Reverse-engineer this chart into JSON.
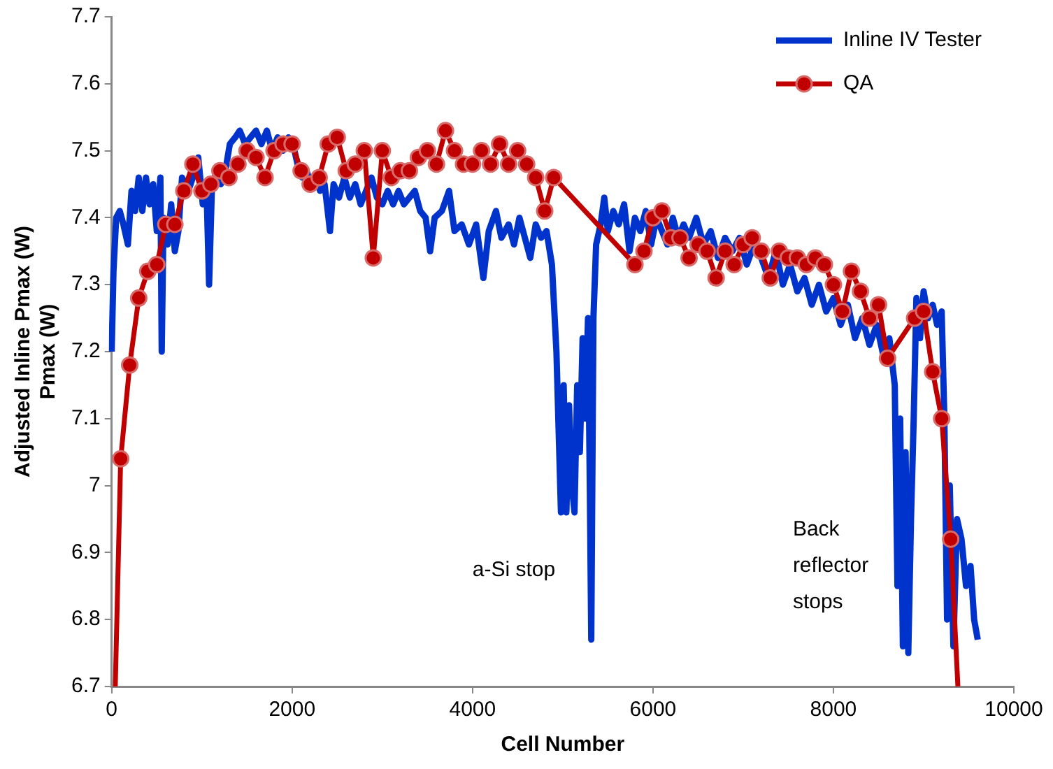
{
  "chart_data": {
    "type": "line",
    "xlabel": "Cell Number",
    "ylabel": "Adjusted Inline Pmax (W)\nPmax (W)",
    "xlim": [
      0,
      10000
    ],
    "xticks": [
      0,
      2000,
      4000,
      6000,
      8000,
      10000
    ],
    "ylim": [
      6.7,
      7.7
    ],
    "yticks": [
      6.7,
      6.8,
      6.9,
      7,
      7.1,
      7.2,
      7.3,
      7.4,
      7.5,
      7.6,
      7.7
    ],
    "grid": false,
    "legend": "top right",
    "series": [
      {
        "name": "Inline IV Tester",
        "color": "#0033cc",
        "marker": "none",
        "x": [
          0,
          20,
          50,
          90,
          130,
          180,
          220,
          260,
          300,
          340,
          380,
          420,
          460,
          500,
          540,
          555,
          575,
          620,
          660,
          700,
          740,
          780,
          850,
          900,
          960,
          1010,
          1050,
          1080,
          1110,
          1160,
          1210,
          1260,
          1310,
          1370,
          1420,
          1480,
          1540,
          1600,
          1660,
          1720,
          1780,
          1840,
          1900,
          1960,
          2010,
          2060,
          2110,
          2160,
          2210,
          2260,
          2310,
          2360,
          2420,
          2460,
          2520,
          2580,
          2640,
          2700,
          2760,
          2820,
          2880,
          2940,
          3000,
          3060,
          3120,
          3180,
          3240,
          3300,
          3360,
          3420,
          3480,
          3530,
          3580,
          3660,
          3740,
          3800,
          3880,
          3960,
          4040,
          4120,
          4180,
          4260,
          4320,
          4400,
          4460,
          4520,
          4580,
          4640,
          4700,
          4760,
          4820,
          4880,
          4930,
          4980,
          5010,
          5040,
          5070,
          5100,
          5130,
          5160,
          5190,
          5220,
          5250,
          5280,
          5300,
          5316,
          5340,
          5370,
          5420,
          5460,
          5500,
          5560,
          5620,
          5680,
          5740,
          5800,
          5860,
          5920,
          5980,
          6040,
          6100,
          6160,
          6220,
          6280,
          6340,
          6400,
          6480,
          6560,
          6640,
          6720,
          6800,
          6880,
          6960,
          7040,
          7120,
          7200,
          7280,
          7360,
          7440,
          7520,
          7600,
          7680,
          7760,
          7840,
          7920,
          8000,
          8080,
          8160,
          8240,
          8320,
          8400,
          8480,
          8560,
          8620,
          8680,
          8710,
          8740,
          8770,
          8800,
          8830,
          8860,
          8890,
          8920,
          8960,
          9000,
          9050,
          9100,
          9150,
          9200,
          9230,
          9260,
          9290,
          9330,
          9370,
          9420,
          9470,
          9520,
          9560,
          9600
        ],
        "values": [
          7.2,
          7.32,
          7.4,
          7.41,
          7.39,
          7.36,
          7.44,
          7.41,
          7.46,
          7.41,
          7.46,
          7.42,
          7.45,
          7.38,
          7.46,
          7.2,
          7.4,
          7.36,
          7.42,
          7.35,
          7.38,
          7.46,
          7.44,
          7.46,
          7.49,
          7.42,
          7.45,
          7.3,
          7.44,
          7.47,
          7.45,
          7.47,
          7.51,
          7.52,
          7.53,
          7.51,
          7.52,
          7.53,
          7.51,
          7.53,
          7.5,
          7.52,
          7.5,
          7.52,
          7.51,
          7.48,
          7.46,
          7.47,
          7.45,
          7.46,
          7.44,
          7.45,
          7.38,
          7.45,
          7.43,
          7.46,
          7.43,
          7.45,
          7.42,
          7.44,
          7.46,
          7.43,
          7.42,
          7.44,
          7.42,
          7.44,
          7.42,
          7.43,
          7.44,
          7.41,
          7.4,
          7.35,
          7.4,
          7.41,
          7.44,
          7.38,
          7.39,
          7.36,
          7.39,
          7.31,
          7.38,
          7.41,
          7.37,
          7.39,
          7.36,
          7.4,
          7.37,
          7.34,
          7.39,
          7.37,
          7.38,
          7.33,
          7.2,
          6.96,
          7.15,
          6.96,
          7.12,
          7,
          6.96,
          7.15,
          7.05,
          7.22,
          7.1,
          7.25,
          7,
          6.77,
          7.25,
          7.36,
          7.39,
          7.43,
          7.38,
          7.41,
          7.39,
          7.42,
          7.35,
          7.4,
          7.38,
          7.41,
          7.36,
          7.4,
          7.38,
          7.36,
          7.4,
          7.37,
          7.39,
          7.37,
          7.4,
          7.36,
          7.38,
          7.34,
          7.37,
          7.35,
          7.37,
          7.33,
          7.36,
          7.34,
          7.31,
          7.35,
          7.3,
          7.33,
          7.29,
          7.31,
          7.27,
          7.3,
          7.26,
          7.28,
          7.24,
          7.27,
          7.22,
          7.25,
          7.21,
          7.24,
          7.19,
          7.22,
          7.15,
          6.85,
          7.1,
          6.76,
          7.05,
          6.75,
          6.95,
          7.1,
          7.28,
          7.22,
          7.29,
          7.25,
          7.27,
          7.24,
          7.26,
          7.1,
          6.8,
          7,
          6.76,
          6.95,
          6.92,
          6.85,
          6.88,
          6.8,
          6.77
        ]
      },
      {
        "name": "QA",
        "color": "#c00000",
        "marker": "circle",
        "x": [
          40,
          100,
          200,
          300,
          400,
          500,
          600,
          700,
          800,
          900,
          1000,
          1100,
          1200,
          1300,
          1400,
          1500,
          1600,
          1700,
          1800,
          1900,
          2000,
          2100,
          2200,
          2300,
          2400,
          2500,
          2600,
          2700,
          2800,
          2900,
          3000,
          3100,
          3200,
          3300,
          3400,
          3500,
          3600,
          3700,
          3800,
          3900,
          4000,
          4100,
          4200,
          4300,
          4400,
          4500,
          4600,
          4700,
          4800,
          4900,
          5800,
          5900,
          6000,
          6100,
          6200,
          6300,
          6400,
          6500,
          6600,
          6700,
          6800,
          6900,
          7000,
          7100,
          7200,
          7300,
          7400,
          7500,
          7600,
          7700,
          7800,
          7900,
          8000,
          8100,
          8200,
          8300,
          8400,
          8500,
          8600,
          8900,
          9000,
          9100,
          9200,
          9300,
          9380
        ],
        "values": [
          6.7,
          7.04,
          7.18,
          7.28,
          7.32,
          7.33,
          7.39,
          7.39,
          7.44,
          7.48,
          7.44,
          7.45,
          7.47,
          7.46,
          7.48,
          7.5,
          7.49,
          7.46,
          7.5,
          7.51,
          7.51,
          7.47,
          7.45,
          7.46,
          7.51,
          7.52,
          7.47,
          7.48,
          7.5,
          7.34,
          7.5,
          7.46,
          7.47,
          7.47,
          7.49,
          7.5,
          7.48,
          7.53,
          7.5,
          7.48,
          7.48,
          7.5,
          7.48,
          7.51,
          7.48,
          7.5,
          7.48,
          7.46,
          7.41,
          7.46,
          7.33,
          7.35,
          7.4,
          7.41,
          7.37,
          7.37,
          7.34,
          7.36,
          7.35,
          7.31,
          7.35,
          7.33,
          7.36,
          7.37,
          7.35,
          7.31,
          7.35,
          7.34,
          7.34,
          7.33,
          7.34,
          7.33,
          7.3,
          7.26,
          7.32,
          7.29,
          7.25,
          7.27,
          7.19,
          7.25,
          7.26,
          7.17,
          7.1,
          6.92,
          6.7
        ]
      }
    ],
    "annotations": [
      "a-Si stop",
      "Back reflector stops"
    ]
  }
}
